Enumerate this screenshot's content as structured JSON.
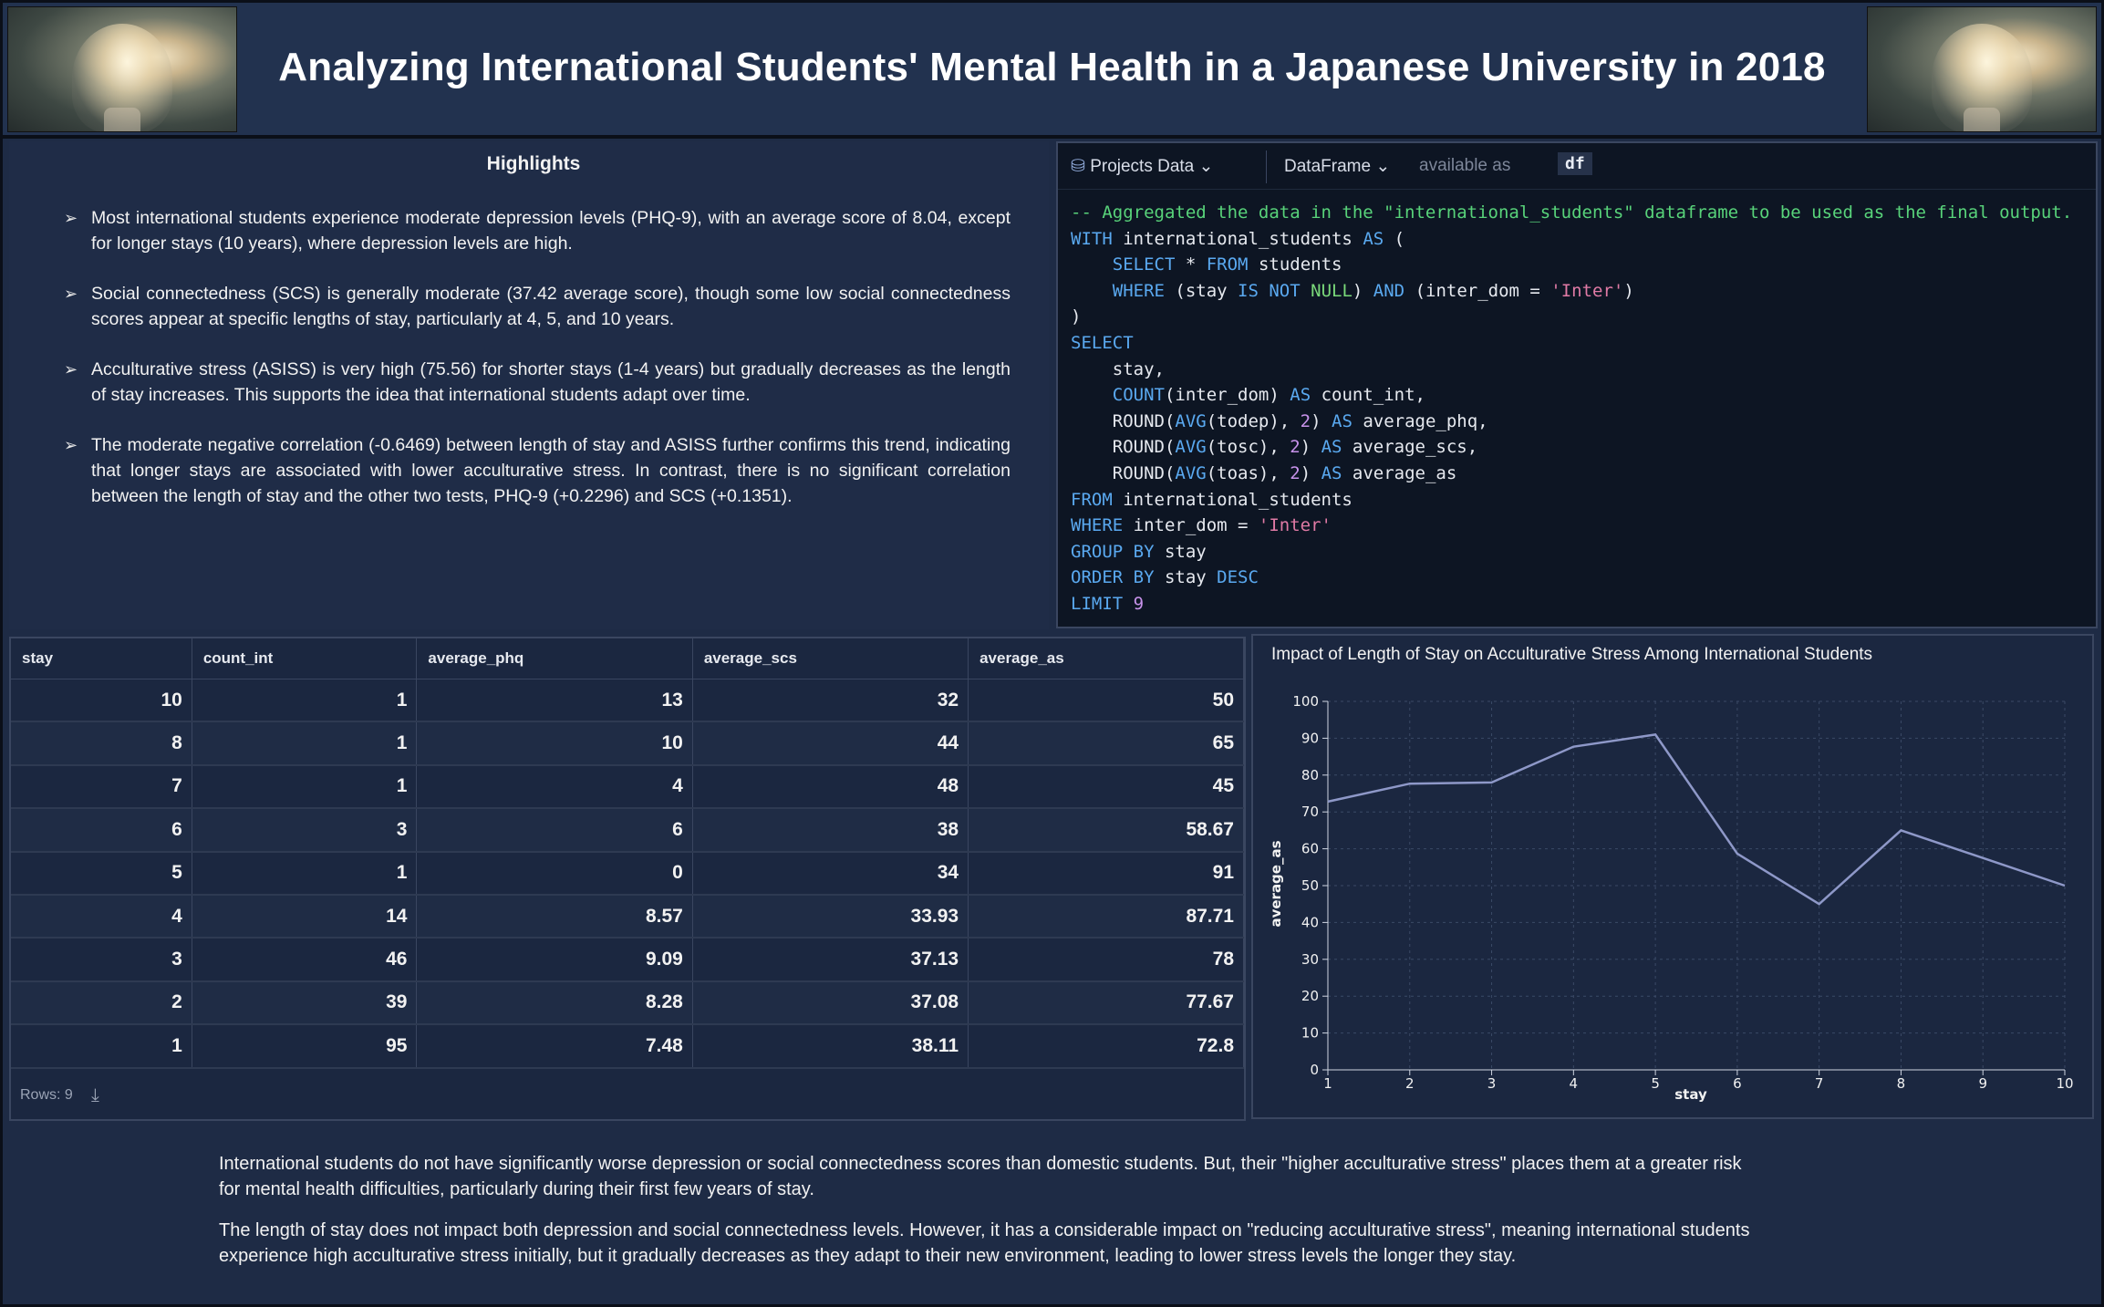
{
  "header": {
    "title": "Analyzing International Students' Mental Health in a Japanese University in 2018"
  },
  "highlights": {
    "title": "Highlights",
    "items": [
      "Most international students experience moderate depression levels (PHQ-9), with an average score of 8.04, except for longer stays (10 years), where depression levels are high.",
      "Social connectedness (SCS) is generally moderate (37.42 average score), though some low social connectedness scores appear at specific lengths of stay, particularly at 4, 5, and 10 years.",
      "Acculturative stress (ASISS) is very high (75.56) for shorter stays (1-4 years) but gradually decreases as the length of stay increases. This supports the idea that international students adapt over time.",
      "The moderate negative correlation (-0.6469) between length of stay and ASISS further confirms this trend, indicating that longer stays are associated with lower acculturative stress. In contrast, there is no significant correlation between the length of stay and the other two tests, PHQ-9 (+0.2296) and SCS (+0.1351)."
    ]
  },
  "sql": {
    "projects_label": "Projects Data",
    "dataframe_label": "DataFrame",
    "available_as_label": "available as",
    "df_name": "df"
  },
  "table": {
    "columns": [
      "stay",
      "count_int",
      "average_phq",
      "average_scs",
      "average_as"
    ],
    "rows": [
      [
        "10",
        "1",
        "13",
        "32",
        "50"
      ],
      [
        "8",
        "1",
        "10",
        "44",
        "65"
      ],
      [
        "7",
        "1",
        "4",
        "48",
        "45"
      ],
      [
        "6",
        "3",
        "6",
        "38",
        "58.67"
      ],
      [
        "5",
        "1",
        "0",
        "34",
        "91"
      ],
      [
        "4",
        "14",
        "8.57",
        "33.93",
        "87.71"
      ],
      [
        "3",
        "46",
        "9.09",
        "37.13",
        "78"
      ],
      [
        "2",
        "39",
        "8.28",
        "37.08",
        "77.67"
      ],
      [
        "1",
        "95",
        "7.48",
        "38.11",
        "72.8"
      ]
    ],
    "rows_label": "Rows: 9"
  },
  "chart_data": {
    "type": "line",
    "title": "Impact of Length of Stay on Acculturative Stress Among International Students",
    "xlabel": "stay",
    "ylabel": "average_as",
    "x": [
      1,
      2,
      3,
      4,
      5,
      6,
      7,
      8,
      9,
      10
    ],
    "values": [
      72.8,
      77.67,
      78,
      87.71,
      91,
      58.67,
      45,
      65,
      57.5,
      50
    ],
    "xlim": [
      1,
      10
    ],
    "ylim": [
      0,
      100
    ],
    "yticks": [
      0,
      10,
      20,
      30,
      40,
      50,
      60,
      70,
      80,
      90,
      100
    ],
    "grid": true,
    "line_color": "#8e98c8"
  },
  "conclusions": [
    "International students do not have significantly worse depression or social connectedness scores than domestic students. But, their \"higher acculturative stress\" places them at a greater risk for mental health difficulties, particularly during their first few years of stay.",
    "The length of stay does not impact both depression and social connectedness levels. However, it has a considerable impact on \"reducing acculturative stress\", meaning international students experience high acculturative stress initially, but it gradually decreases as they adapt to their new environment, leading to lower stress levels the longer they stay."
  ]
}
